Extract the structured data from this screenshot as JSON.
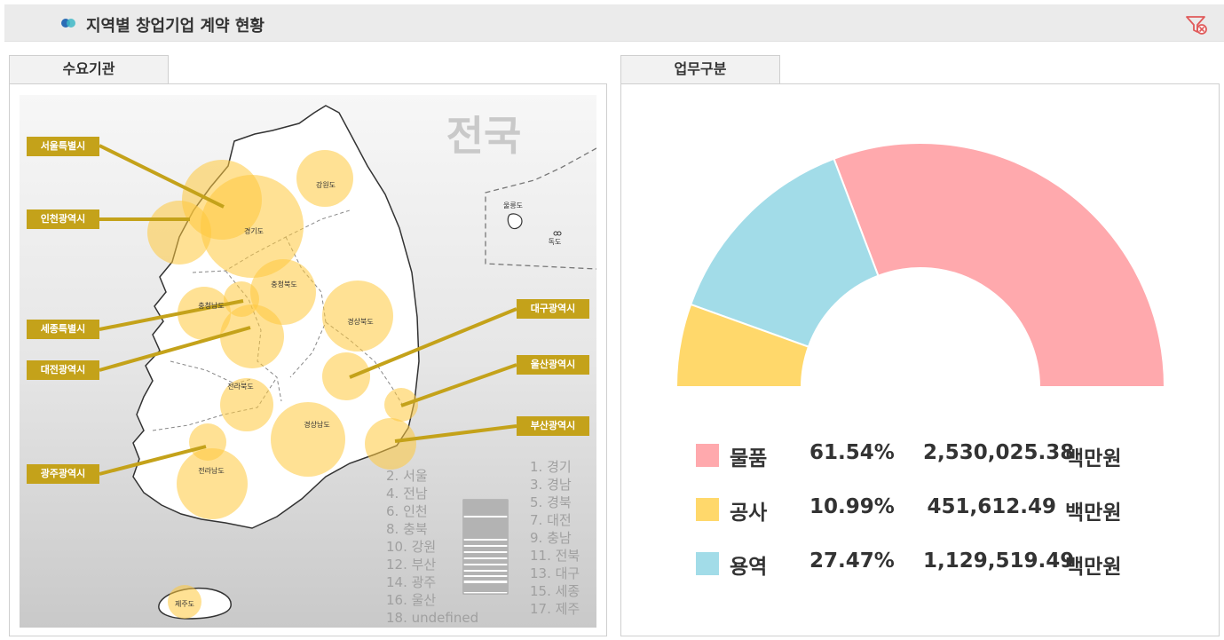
{
  "header": {
    "title": "지역별 창업기업 계약 현황"
  },
  "tabs": {
    "left": "수요기관",
    "right": "업무구분"
  },
  "map": {
    "watermark": "전국",
    "province_labels": [
      "강원도",
      "경기도",
      "충청북도",
      "충청남도",
      "경상북도",
      "전라북도",
      "경상남도",
      "전라남도",
      "제주도",
      "울릉도",
      "독도"
    ],
    "callouts": {
      "seoul": "서울특별시",
      "incheon": "인천광역시",
      "sejong": "세종특별시",
      "daejeon": "대전광역시",
      "gwangju": "광주광역시",
      "daegu": "대구광역시",
      "ulsan": "울산광역시",
      "busan": "부산광역시"
    },
    "rank_left": [
      "2. 서울",
      "4. 전남",
      "6. 인천",
      "8. 충북",
      "10. 강원",
      "12. 부산",
      "14. 광주",
      "16. 울산",
      "18. undefined"
    ],
    "rank_right": [
      "1. 경기",
      "3. 경남",
      "5. 경북",
      "7. 대전",
      "9. 충남",
      "11. 전북",
      "13. 대구",
      "15. 세종",
      "17. 제주"
    ]
  },
  "chart_data": {
    "type": "pie",
    "shape": "half-donut",
    "categories": [
      "물품",
      "공사",
      "용역"
    ],
    "values": [
      2530025.38,
      451612.49,
      1129519.49
    ],
    "percents": [
      "61.54%",
      "10.99%",
      "27.47%"
    ],
    "amounts": [
      "2,530,025.38",
      "451,612.49",
      "1,129,519.49"
    ],
    "unit": "백만원",
    "colors": [
      "#ffa9ad",
      "#ffd86b",
      "#a2dce8"
    ]
  }
}
